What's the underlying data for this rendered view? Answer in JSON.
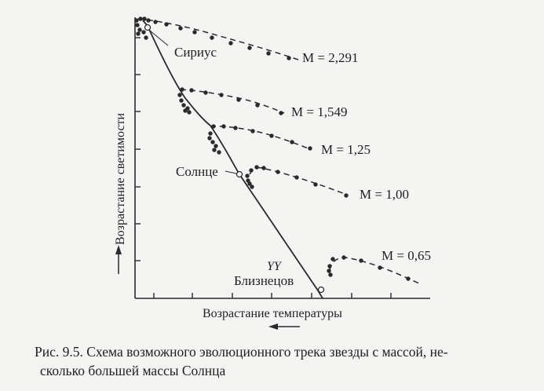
{
  "axis": {
    "y_label": "Возрастание светимости",
    "x_label": "Возрастание температуры"
  },
  "labels": {
    "sirius": "Сириус",
    "sun": "Солнце",
    "yy": "YY",
    "gemini": "Близнецов"
  },
  "tracks": [
    {
      "label": "M = 2,291"
    },
    {
      "label": "M = 1,549"
    },
    {
      "label": "M = 1,25"
    },
    {
      "label": "M = 1,00"
    },
    {
      "label": "M = 0,65"
    }
  ],
  "caption": {
    "line1": "Рис. 9.5. Схема возможного эволюционного трека звезды с массой, не-",
    "line2": "сколько большей массы Солнца"
  }
}
